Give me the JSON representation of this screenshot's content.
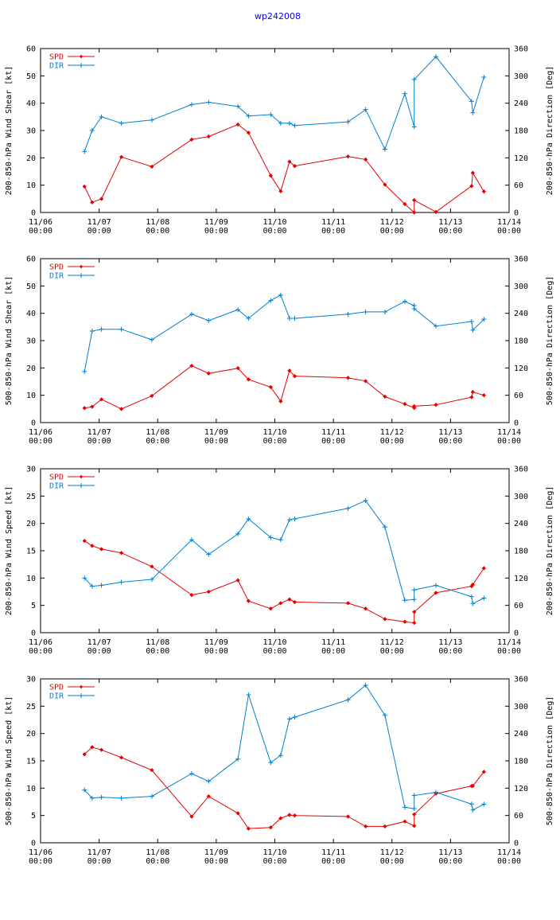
{
  "title": "wp242008",
  "colors": {
    "spd": "#e60000",
    "dir": "#0080d0",
    "title": "#0000ff"
  },
  "chart_data": [
    {
      "type": "line",
      "ylabel_left": "200-850-hPa Wind Shear [kt]",
      "ylabel_right": "200-850-hPa Direction [Deg]",
      "ylim_left": [
        0,
        60
      ],
      "yticks_left": [
        0,
        10,
        20,
        30,
        40,
        50,
        60
      ],
      "ylim_right": [
        0,
        360
      ],
      "yticks_right": [
        0,
        60,
        120,
        180,
        240,
        300,
        360
      ],
      "xlim": [
        0,
        8
      ],
      "xticks": [
        "11/06\n00:00",
        "11/07\n00:00",
        "11/08\n00:00",
        "11/09\n00:00",
        "11/10\n00:00",
        "11/11\n00:00",
        "11/12\n00:00",
        "11/13\n00:00",
        "11/14\n00:00"
      ],
      "series": [
        {
          "name": "SPD",
          "axis": "left",
          "marker": "diamond",
          "x": [
            0.75,
            0.88,
            1.04,
            1.38,
            1.9,
            2.58,
            2.87,
            3.37,
            3.55,
            3.93,
            4.1,
            4.25,
            4.34,
            5.25,
            5.55,
            5.88,
            6.22,
            6.38,
            6.38,
            6.75,
            7.36,
            7.38,
            7.57
          ],
          "y": [
            9.5,
            3.7,
            5,
            20.3,
            16.8,
            26.7,
            27.8,
            32.2,
            29.2,
            13.5,
            7.8,
            18.6,
            17,
            20.5,
            19.4,
            10.2,
            3.1,
            0,
            4.5,
            0.2,
            9.7,
            14.5,
            7.7
          ]
        },
        {
          "name": "DIR",
          "axis": "right",
          "marker": "plus",
          "x": [
            0.75,
            0.88,
            1.04,
            1.38,
            1.9,
            2.58,
            2.87,
            3.37,
            3.55,
            3.93,
            4.1,
            4.25,
            4.34,
            5.25,
            5.55,
            5.88,
            6.22,
            6.38,
            6.38,
            6.75,
            7.36,
            7.38,
            7.57
          ],
          "y": [
            134,
            180,
            210,
            196,
            203,
            237,
            242,
            233,
            212,
            215,
            196,
            196,
            191,
            199,
            226,
            139,
            261,
            188,
            292,
            342,
            244,
            219,
            297
          ]
        }
      ]
    },
    {
      "type": "line",
      "ylabel_left": "500-850-hPa Wind Shear [kt]",
      "ylabel_right": "500-850-hPa Direction [Deg]",
      "ylim_left": [
        0,
        60
      ],
      "yticks_left": [
        0,
        10,
        20,
        30,
        40,
        50,
        60
      ],
      "ylim_right": [
        0,
        360
      ],
      "yticks_right": [
        0,
        60,
        120,
        180,
        240,
        300,
        360
      ],
      "xlim": [
        0,
        8
      ],
      "xticks": [
        "11/06\n00:00",
        "11/07\n00:00",
        "11/08\n00:00",
        "11/09\n00:00",
        "11/10\n00:00",
        "11/11\n00:00",
        "11/12\n00:00",
        "11/13\n00:00",
        "11/14\n00:00"
      ],
      "series": [
        {
          "name": "SPD",
          "axis": "left",
          "marker": "diamond",
          "x": [
            0.75,
            0.88,
            1.04,
            1.38,
            1.9,
            2.58,
            2.87,
            3.37,
            3.55,
            3.93,
            4.1,
            4.25,
            4.34,
            5.25,
            5.55,
            5.88,
            6.22,
            6.38,
            6.38,
            6.75,
            7.36,
            7.38,
            7.57
          ],
          "y": [
            5.3,
            5.8,
            8.5,
            5,
            9.8,
            20.8,
            18,
            19.9,
            15.8,
            13,
            7.8,
            19,
            17,
            16.4,
            15.2,
            9.5,
            6.8,
            5.4,
            6,
            6.5,
            9.3,
            11.2,
            10
          ]
        },
        {
          "name": "DIR",
          "axis": "right",
          "marker": "plus",
          "x": [
            0.75,
            0.88,
            1.04,
            1.38,
            1.9,
            2.58,
            2.87,
            3.37,
            3.55,
            3.93,
            4.1,
            4.25,
            4.34,
            5.25,
            5.55,
            5.88,
            6.22,
            6.38,
            6.38,
            6.75,
            7.36,
            7.38,
            7.57
          ],
          "y": [
            112,
            201,
            205,
            205,
            182,
            238,
            224,
            248,
            229,
            268,
            280,
            229,
            229,
            238,
            243,
            243,
            266,
            257,
            250,
            212,
            222,
            203,
            227
          ]
        }
      ]
    },
    {
      "type": "line",
      "ylabel_left": "200-850-hPa Wind Speed [kt]",
      "ylabel_right": "200-850-hPa Direction [Deg]",
      "ylim_left": [
        0,
        30
      ],
      "yticks_left": [
        0,
        5,
        10,
        15,
        20,
        25,
        30
      ],
      "ylim_right": [
        0,
        360
      ],
      "yticks_right": [
        0,
        60,
        120,
        180,
        240,
        300,
        360
      ],
      "xlim": [
        0,
        8
      ],
      "xticks": [
        "11/06\n00:00",
        "11/07\n00:00",
        "11/08\n00:00",
        "11/09\n00:00",
        "11/10\n00:00",
        "11/11\n00:00",
        "11/12\n00:00",
        "11/13\n00:00",
        "11/14\n00:00"
      ],
      "series": [
        {
          "name": "SPD",
          "axis": "left",
          "marker": "diamond",
          "x": [
            0.75,
            0.88,
            1.04,
            1.38,
            1.9,
            2.58,
            2.87,
            3.37,
            3.55,
            3.93,
            4.1,
            4.25,
            4.34,
            5.25,
            5.55,
            5.88,
            6.22,
            6.38,
            6.38,
            6.75,
            7.36,
            7.38,
            7.57
          ],
          "y": [
            16.8,
            15.9,
            15.3,
            14.6,
            12.1,
            6.9,
            7.5,
            9.6,
            5.8,
            4.4,
            5.4,
            6.1,
            5.6,
            5.4,
            4.4,
            2.5,
            2,
            1.8,
            3.8,
            7.3,
            8.5,
            8.8,
            11.8
          ]
        },
        {
          "name": "DIR",
          "axis": "right",
          "marker": "plus",
          "x": [
            0.75,
            0.88,
            1.04,
            1.38,
            1.9,
            2.58,
            2.87,
            3.37,
            3.55,
            3.93,
            4.1,
            4.25,
            4.34,
            5.25,
            5.55,
            5.88,
            6.22,
            6.38,
            6.38,
            6.75,
            7.36,
            7.38,
            7.57
          ],
          "y": [
            120,
            102,
            104,
            111,
            117,
            204,
            172,
            217,
            250,
            209,
            204,
            248,
            250,
            273,
            290,
            232,
            71,
            73,
            94,
            104,
            79,
            64,
            76
          ]
        }
      ]
    },
    {
      "type": "line",
      "ylabel_left": "500-850-hPa Wind Speed [kt]",
      "ylabel_right": "500-850-hPa Direction [Deg]",
      "ylim_left": [
        0,
        30
      ],
      "yticks_left": [
        0,
        5,
        10,
        15,
        20,
        25,
        30
      ],
      "ylim_right": [
        0,
        360
      ],
      "yticks_right": [
        0,
        60,
        120,
        180,
        240,
        300,
        360
      ],
      "xlim": [
        0,
        8
      ],
      "xticks": [
        "11/06\n00:00",
        "11/07\n00:00",
        "11/08\n00:00",
        "11/09\n00:00",
        "11/10\n00:00",
        "11/11\n00:00",
        "11/12\n00:00",
        "11/13\n00:00",
        "11/14\n00:00"
      ],
      "series": [
        {
          "name": "SPD",
          "axis": "left",
          "marker": "diamond",
          "x": [
            0.75,
            0.88,
            1.04,
            1.38,
            1.9,
            2.58,
            2.87,
            3.37,
            3.55,
            3.93,
            4.1,
            4.25,
            4.34,
            5.25,
            5.55,
            5.88,
            6.22,
            6.38,
            6.38,
            6.75,
            7.36,
            7.38,
            7.57
          ],
          "y": [
            16.2,
            17.5,
            17,
            15.6,
            13.3,
            4.8,
            8.5,
            5.4,
            2.6,
            2.8,
            4.5,
            5.1,
            5,
            4.8,
            3,
            3,
            3.9,
            3.1,
            5.2,
            9,
            10.4,
            10.4,
            13
          ]
        },
        {
          "name": "DIR",
          "axis": "right",
          "marker": "plus",
          "x": [
            0.75,
            0.88,
            1.04,
            1.38,
            1.9,
            2.58,
            2.87,
            3.37,
            3.55,
            3.93,
            4.1,
            4.25,
            4.34,
            5.25,
            5.55,
            5.88,
            6.22,
            6.38,
            6.38,
            6.75,
            7.36,
            7.38,
            7.57
          ],
          "y": [
            116,
            98,
            100,
            98,
            102,
            152,
            135,
            184,
            325,
            176,
            192,
            272,
            276,
            314,
            346,
            280,
            78,
            75,
            104,
            111,
            85,
            72,
            85
          ]
        }
      ]
    }
  ]
}
